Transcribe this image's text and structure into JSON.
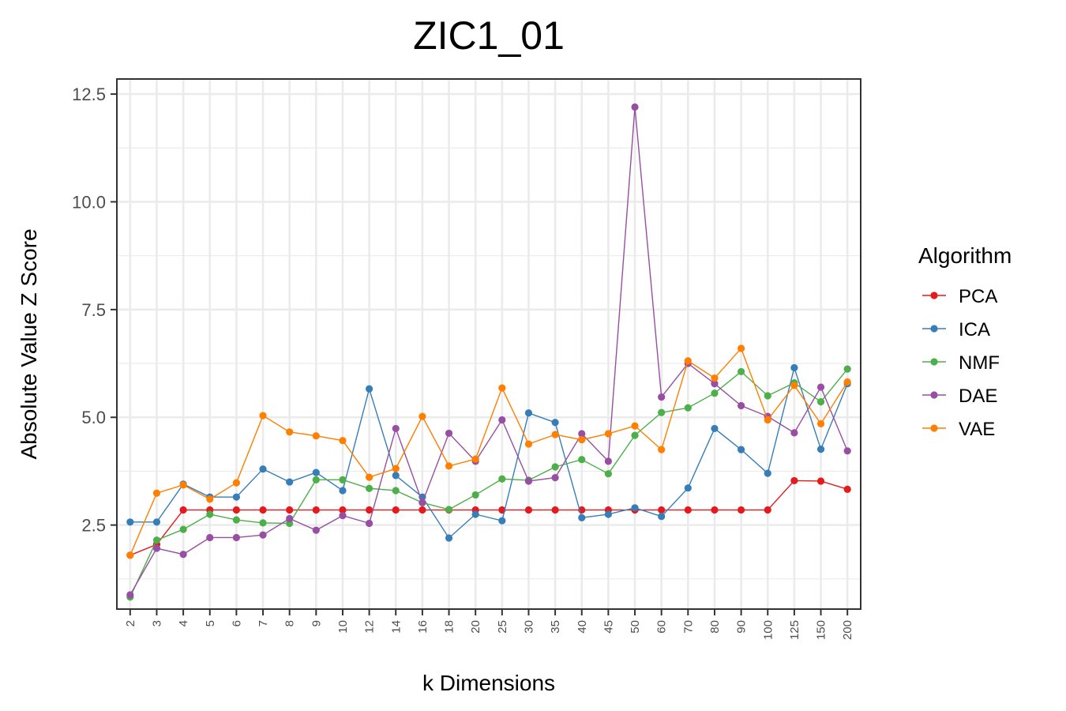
{
  "chart_data": {
    "type": "line",
    "title": "ZIC1_01",
    "xlabel": "k Dimensions",
    "ylabel": "Absolute Value Z Score",
    "categories": [
      "2",
      "3",
      "4",
      "5",
      "6",
      "7",
      "8",
      "9",
      "10",
      "12",
      "14",
      "16",
      "18",
      "20",
      "25",
      "30",
      "35",
      "40",
      "45",
      "50",
      "60",
      "70",
      "80",
      "90",
      "100",
      "125",
      "150",
      "200"
    ],
    "ylim": [
      0.55,
      12.85
    ],
    "yticks": [
      "2.5",
      "5.0",
      "7.5",
      "10.0",
      "12.5"
    ],
    "grid": true,
    "legend": {
      "title": "Algorithm",
      "position": "right"
    },
    "series": [
      {
        "name": "PCA",
        "color": "#e41a1c",
        "values": [
          1.8,
          2.05,
          2.85,
          2.85,
          2.85,
          2.85,
          2.85,
          2.85,
          2.85,
          2.85,
          2.85,
          2.85,
          2.85,
          2.85,
          2.85,
          2.85,
          2.85,
          2.85,
          2.85,
          2.85,
          2.85,
          2.85,
          2.85,
          2.85,
          2.85,
          3.53,
          3.52,
          3.33
        ]
      },
      {
        "name": "ICA",
        "color": "#377eb8",
        "values": [
          2.57,
          2.57,
          3.45,
          3.15,
          3.15,
          3.8,
          3.5,
          3.72,
          3.3,
          5.66,
          3.65,
          3.15,
          2.2,
          2.75,
          2.6,
          5.1,
          4.88,
          2.67,
          2.75,
          2.9,
          2.7,
          3.36,
          4.74,
          4.25,
          3.7,
          6.15,
          4.26,
          5.78
        ]
      },
      {
        "name": "NMF",
        "color": "#4daf4a",
        "values": [
          0.83,
          2.15,
          2.4,
          2.75,
          2.62,
          2.55,
          2.54,
          3.55,
          3.55,
          3.35,
          3.3,
          3.02,
          2.86,
          3.2,
          3.57,
          3.54,
          3.85,
          4.02,
          3.69,
          4.58,
          5.11,
          5.22,
          5.56,
          6.06,
          5.5,
          5.8,
          5.36,
          6.12
        ]
      },
      {
        "name": "DAE",
        "color": "#984ea3",
        "values": [
          0.88,
          1.96,
          1.82,
          2.21,
          2.21,
          2.27,
          2.65,
          2.38,
          2.72,
          2.54,
          4.74,
          3.02,
          4.63,
          3.98,
          4.94,
          3.52,
          3.6,
          4.62,
          3.98,
          12.2,
          5.47,
          6.25,
          5.78,
          5.27,
          5.02,
          4.64,
          5.7,
          4.22
        ]
      },
      {
        "name": "VAE",
        "color": "#ff7f00",
        "values": [
          1.8,
          3.24,
          3.43,
          3.1,
          3.48,
          5.04,
          4.66,
          4.57,
          4.46,
          3.61,
          3.81,
          5.02,
          3.87,
          4.03,
          5.68,
          4.38,
          4.6,
          4.48,
          4.62,
          4.8,
          4.25,
          6.31,
          5.91,
          6.6,
          4.94,
          5.74,
          4.85,
          5.82
        ]
      }
    ]
  }
}
